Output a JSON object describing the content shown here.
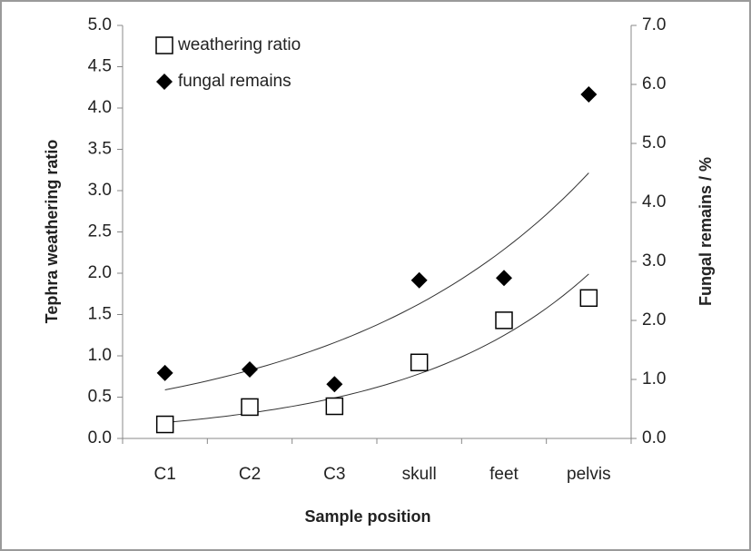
{
  "chart_data": {
    "type": "scatter",
    "x_label": "Sample position",
    "y_label": "Tephra weathering ratio",
    "y2_label": "Fungal remains / %",
    "categories": [
      "C1",
      "C2",
      "C3",
      "skull",
      "feet",
      "pelvis"
    ],
    "series": [
      {
        "name": "weathering ratio",
        "color": "#000000",
        "marker": "square",
        "values": [
          0.17,
          0.38,
          0.39,
          0.92,
          1.43,
          1.7
        ]
      },
      {
        "name": "fungal remains",
        "color": "#000000",
        "marker": "diamond",
        "axis": "y2",
        "values": [
          1.11,
          1.17,
          0.92,
          2.68,
          2.72,
          5.83
        ]
      }
    ],
    "ylim": [
      0,
      5
    ],
    "yticks": [
      {
        "value": 0,
        "label": "0.0"
      },
      0.5,
      {
        "value": 1,
        "label": "1.0"
      },
      1.5,
      {
        "value": 2,
        "label": "2.0"
      },
      2.5,
      {
        "value": 3,
        "label": "3.0"
      },
      3.5,
      {
        "value": 4,
        "label": "4.0"
      },
      4.5,
      {
        "value": 5,
        "label": "5.0"
      }
    ],
    "y2lim": [
      0,
      7
    ],
    "y2ticks": [
      {
        "value": 0,
        "label": "0.0"
      },
      {
        "value": 1,
        "label": "1.0"
      },
      {
        "value": 2,
        "label": "2.0"
      },
      {
        "value": 3,
        "label": "3.0"
      },
      {
        "value": 4,
        "label": "4.0"
      },
      {
        "value": 5,
        "label": "5.0"
      },
      {
        "value": 6,
        "label": "6.0"
      },
      {
        "value": 7,
        "label": "7.0"
      }
    ],
    "trendline": "exponential",
    "legend": "top-left"
  }
}
